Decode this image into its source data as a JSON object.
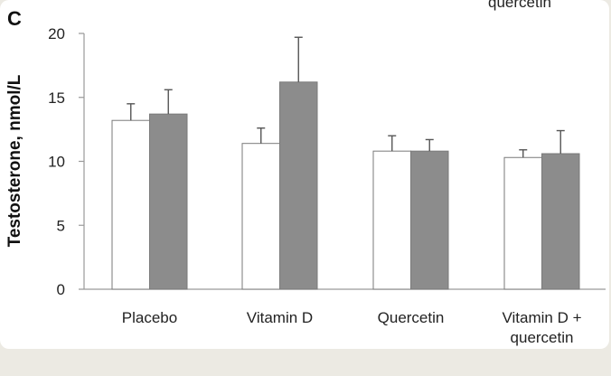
{
  "panel_label": "C",
  "top_cut_text": "quercetin",
  "chart_data": {
    "type": "bar",
    "categories": [
      "Placebo",
      "Vitamin D",
      "Quercetin",
      "Vitamin D + quercetin"
    ],
    "category_lines": [
      [
        "Placebo"
      ],
      [
        "Vitamin D"
      ],
      [
        "Quercetin"
      ],
      [
        "Vitamin D +",
        "quercetin"
      ]
    ],
    "series": [
      {
        "values": [
          13.2,
          11.4,
          10.8,
          10.3
        ],
        "errors": [
          1.3,
          1.2,
          1.2,
          0.6
        ],
        "color": "#ffffff"
      },
      {
        "values": [
          13.7,
          16.2,
          10.8,
          10.6
        ],
        "errors": [
          1.9,
          3.5,
          0.9,
          1.8
        ],
        "color": "#8c8c8c"
      }
    ],
    "ylabel": "Testosterone, nmol/L",
    "ylim": [
      0,
      20
    ],
    "yticks": [
      0,
      5,
      10,
      15,
      20
    ],
    "grid": false
  }
}
